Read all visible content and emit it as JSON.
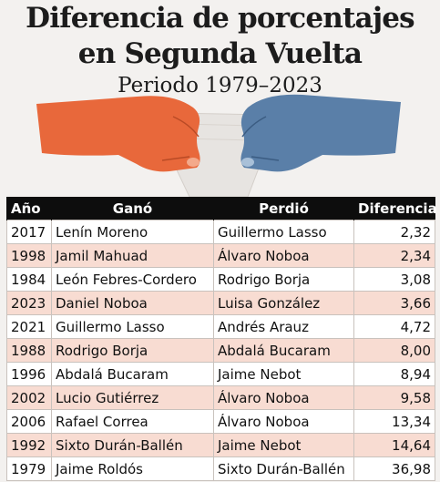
{
  "title_line1": "Diferencia de porcentajes",
  "title_line2": "en Segunda Vuelta",
  "subtitle": "Periodo 1979–2023",
  "colors": {
    "orange_hand": "#e8683b",
    "blue_hand": "#5a7fa8",
    "header_bg": "#0d0d0d",
    "stripe": "#f8dcd2"
  },
  "illustration": {
    "left_icon": "orange-hand-icon",
    "right_icon": "blue-hand-icon",
    "center_icon": "ballot-paper-icon"
  },
  "table": {
    "headers": {
      "year": "Año",
      "won": "Ganó",
      "lost": "Perdió",
      "diff": "Diferencia"
    },
    "rows": [
      {
        "year": "2017",
        "won": "Lenín Moreno",
        "lost": "Guillermo Lasso",
        "diff": "2,32"
      },
      {
        "year": "1998",
        "won": "Jamil Mahuad",
        "lost": "Álvaro Noboa",
        "diff": "2,34"
      },
      {
        "year": "1984",
        "won": "León Febres-Cordero",
        "lost": "Rodrigo Borja",
        "diff": "3,08"
      },
      {
        "year": "2023",
        "won": "Daniel Noboa",
        "lost": "Luisa González",
        "diff": "3,66"
      },
      {
        "year": "2021",
        "won": "Guillermo Lasso",
        "lost": "Andrés Arauz",
        "diff": "4,72"
      },
      {
        "year": "1988",
        "won": "Rodrigo Borja",
        "lost": "Abdalá Bucaram",
        "diff": "8,00"
      },
      {
        "year": "1996",
        "won": "Abdalá Bucaram",
        "lost": "Jaime Nebot",
        "diff": "8,94"
      },
      {
        "year": "2002",
        "won": "Lucio Gutiérrez",
        "lost": "Álvaro Noboa",
        "diff": "9,58"
      },
      {
        "year": "2006",
        "won": "Rafael Correa",
        "lost": "Álvaro Noboa",
        "diff": "13,34"
      },
      {
        "year": "1992",
        "won": "Sixto Durán-Ballén",
        "lost": "Jaime Nebot",
        "diff": "14,64"
      },
      {
        "year": "1979",
        "won": "Jaime Roldós",
        "lost": "Sixto Durán-Ballén",
        "diff": "36,98"
      }
    ]
  }
}
